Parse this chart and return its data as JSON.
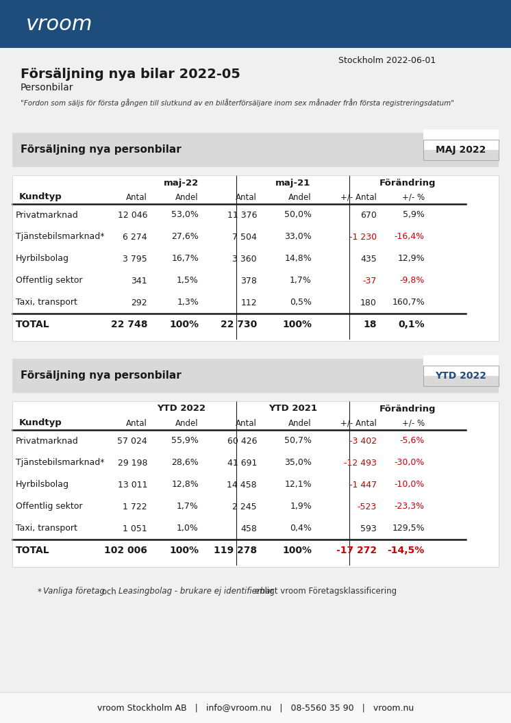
{
  "page_bg": "#f0f0f0",
  "header_bg": "#1e4d7b",
  "header_logo_text": "vroom",
  "date_text": "Stockholm 2022-06-01",
  "title": "Försäljning nya bilar 2022-05",
  "subtitle": "Personbilar",
  "quote": "\"Fordon som säljs för första gången till slutkund av en bilåterförsäljare inom sex månader från första registreringsdatum\"",
  "section1_title": "Försäljning nya personbilar",
  "section1_badge": "MAJ 2022",
  "section1_badge_color": "#1a1a1a",
  "section2_title": "Försäljning nya personbilar",
  "section2_badge": "YTD 2022",
  "section2_badge_color": "#1e4d7b",
  "table1": {
    "col_groups": [
      "maj-22",
      "maj-21",
      "Förändring"
    ],
    "col_headers": [
      "Antal",
      "Andel",
      "Antal",
      "Andel",
      "+/- Antal",
      "+/- %"
    ],
    "row_label": "Kundtyp",
    "rows": [
      {
        "name": "Privatmarknad",
        "v1": "12 046",
        "p1": "53,0%",
        "v2": "11 376",
        "p2": "50,0%",
        "dv": "670",
        "dp": "5,9%",
        "neg_dv": false,
        "neg_dp": false
      },
      {
        "name": "Tjänstebilsmarknad*",
        "v1": "6 274",
        "p1": "27,6%",
        "v2": "7 504",
        "p2": "33,0%",
        "dv": "-1 230",
        "dp": "-16,4%",
        "neg_dv": true,
        "neg_dp": true
      },
      {
        "name": "Hyrbilsbolag",
        "v1": "3 795",
        "p1": "16,7%",
        "v2": "3 360",
        "p2": "14,8%",
        "dv": "435",
        "dp": "12,9%",
        "neg_dv": false,
        "neg_dp": false
      },
      {
        "name": "Offentlig sektor",
        "v1": "341",
        "p1": "1,5%",
        "v2": "378",
        "p2": "1,7%",
        "dv": "-37",
        "dp": "-9,8%",
        "neg_dv": true,
        "neg_dp": true
      },
      {
        "name": "Taxi, transport",
        "v1": "292",
        "p1": "1,3%",
        "v2": "112",
        "p2": "0,5%",
        "dv": "180",
        "dp": "160,7%",
        "neg_dv": false,
        "neg_dp": false
      }
    ],
    "total": {
      "name": "TOTAL",
      "v1": "22 748",
      "p1": "100%",
      "v2": "22 730",
      "p2": "100%",
      "dv": "18",
      "dp": "0,1%",
      "neg_dv": false,
      "neg_dp": false
    }
  },
  "table2": {
    "col_groups": [
      "YTD 2022",
      "YTD 2021",
      "Förändring"
    ],
    "col_headers": [
      "Antal",
      "Andel",
      "Antal",
      "Andel",
      "+/- Antal",
      "+/- %"
    ],
    "row_label": "Kundtyp",
    "rows": [
      {
        "name": "Privatmarknad",
        "v1": "57 024",
        "p1": "55,9%",
        "v2": "60 426",
        "p2": "50,7%",
        "dv": "-3 402",
        "dp": "-5,6%",
        "neg_dv": true,
        "neg_dp": true
      },
      {
        "name": "Tjänstebilsmarknad*",
        "v1": "29 198",
        "p1": "28,6%",
        "v2": "41 691",
        "p2": "35,0%",
        "dv": "-12 493",
        "dp": "-30,0%",
        "neg_dv": true,
        "neg_dp": true
      },
      {
        "name": "Hyrbilsbolag",
        "v1": "13 011",
        "p1": "12,8%",
        "v2": "14 458",
        "p2": "12,1%",
        "dv": "-1 447",
        "dp": "-10,0%",
        "neg_dv": true,
        "neg_dp": true
      },
      {
        "name": "Offentlig sektor",
        "v1": "1 722",
        "p1": "1,7%",
        "v2": "2 245",
        "p2": "1,9%",
        "dv": "-523",
        "dp": "-23,3%",
        "neg_dv": true,
        "neg_dp": true
      },
      {
        "name": "Taxi, transport",
        "v1": "1 051",
        "p1": "1,0%",
        "v2": "458",
        "p2": "0,4%",
        "dv": "593",
        "dp": "129,5%",
        "neg_dv": false,
        "neg_dp": false
      }
    ],
    "total": {
      "name": "TOTAL",
      "v1": "102 006",
      "p1": "100%",
      "v2": "119 278",
      "p2": "100%",
      "dv": "-17 272",
      "dp": "-14,5%",
      "neg_dv": true,
      "neg_dp": true
    }
  },
  "footnote": "* Vanliga företag och Leasingbolag - brukare ej identifierbar enligt vroom Företagsklassificering",
  "footer": "vroom Stockholm AB   |   info@vroom.nu   |   08-5560 35 90   |   vroom.nu",
  "neg_color": "#cc0000",
  "pos_color": "#1a1a1a",
  "section_bg": "#d9d9d9",
  "table_bg": "#ffffff",
  "dark_bg": "#1e4d7b"
}
